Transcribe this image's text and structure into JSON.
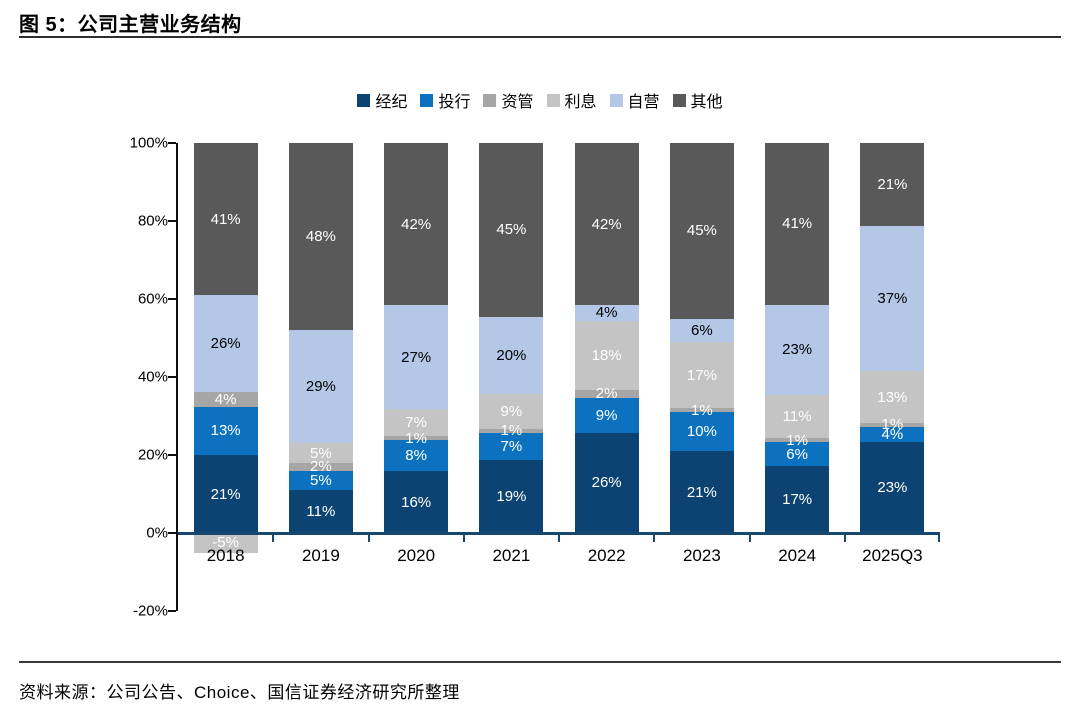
{
  "header": {
    "title": "图 5：公司主营业务结构"
  },
  "footer": {
    "source": "资料来源：公司公告、Choice、国信证券经济研究所整理"
  },
  "chart_data": {
    "type": "bar",
    "stacked": true,
    "normalized_to_100": true,
    "title": "公司主营业务结构",
    "xlabel": "",
    "ylabel": "",
    "categories": [
      "2018",
      "2019",
      "2020",
      "2021",
      "2022",
      "2023",
      "2024",
      "2025Q3"
    ],
    "series": [
      {
        "name": "经纪",
        "color": "#0d4372",
        "label_color": "#ffffff",
        "values": [
          21,
          11,
          16,
          19,
          26,
          21,
          17,
          23
        ]
      },
      {
        "name": "投行",
        "color": "#0c72c0",
        "label_color": "#ffffff",
        "values": [
          13,
          5,
          8,
          7,
          9,
          10,
          6,
          4
        ]
      },
      {
        "name": "资管",
        "color": "#a6a6a6",
        "label_color": "#ffffff",
        "values": [
          4,
          2,
          1,
          1,
          2,
          1,
          1,
          1
        ]
      },
      {
        "name": "利息",
        "color": "#c4c4c4",
        "label_color": "#ffffff",
        "values": [
          -5,
          5,
          7,
          9,
          18,
          17,
          11,
          13
        ]
      },
      {
        "name": "自营",
        "color": "#b4c7e7",
        "label_color": "#000000",
        "values": [
          26,
          29,
          27,
          20,
          4,
          6,
          23,
          37
        ]
      },
      {
        "name": "其他",
        "color": "#595959",
        "label_color": "#ffffff",
        "values": [
          41,
          48,
          42,
          45,
          42,
          45,
          41,
          21
        ]
      }
    ],
    "value_suffix": "%",
    "ylim": [
      -20,
      100
    ],
    "y_ticks": [
      100,
      80,
      60,
      40,
      20,
      0,
      -20
    ],
    "y_tick_labels": [
      "100%",
      "80%",
      "60%",
      "40%",
      "20%",
      "0%",
      "-20%"
    ],
    "grid": false,
    "legend_position": "top",
    "axis_color": "#0f0f0f",
    "baseline_color": "#17466f"
  }
}
